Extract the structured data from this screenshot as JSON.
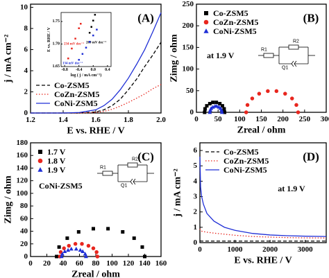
{
  "chart_data": [
    {
      "type": "line",
      "panel_label": "(A)",
      "x_label": "E vs. RHE / V",
      "y_label": "j / mA cm⁻²",
      "xlim": [
        1.2,
        2.0
      ],
      "ylim": [
        0,
        10.3
      ],
      "xticks": [
        1.2,
        1.4,
        1.6,
        1.8,
        {
          "value": 2,
          "label": "2.0"
        }
      ],
      "yticks": [
        0,
        2,
        4,
        6,
        8,
        10
      ],
      "legend": "lower left",
      "series": [
        {
          "name": "Co-ZSM5",
          "color": "#000000",
          "dash": "dashed",
          "x": [
            1.2,
            1.3,
            1.4,
            1.5,
            1.6,
            1.65,
            1.7,
            1.75,
            1.8,
            1.85,
            1.9,
            1.95,
            2.0
          ],
          "values": [
            0,
            0,
            0,
            0,
            0.1,
            0.3,
            0.7,
            1.3,
            2.2,
            3.2,
            4.4,
            5.5,
            6.7
          ]
        },
        {
          "name": "CoZn-ZSM5",
          "color": "#e8261e",
          "dash": "dotted",
          "x": [
            1.2,
            1.3,
            1.4,
            1.5,
            1.6,
            1.65,
            1.7,
            1.75,
            1.8,
            1.85,
            1.9,
            1.95,
            2.0
          ],
          "values": [
            0,
            0,
            0,
            0,
            0.05,
            0.15,
            0.35,
            0.65,
            1.0,
            1.4,
            1.8,
            2.3,
            2.7
          ]
        },
        {
          "name": "CoNi-ZSM5",
          "color": "#1f2fd6",
          "dash": "solid",
          "x": [
            1.2,
            1.3,
            1.4,
            1.5,
            1.6,
            1.65,
            1.7,
            1.75,
            1.8,
            1.85,
            1.9,
            1.95,
            2.0
          ],
          "values": [
            0,
            0,
            0,
            0.05,
            0.3,
            0.7,
            1.3,
            2.2,
            3.3,
            4.6,
            6.0,
            7.7,
            9.5
          ]
        }
      ]
    },
    {
      "type": "scatter",
      "x_label": "log ( j / mA cm⁻¹)",
      "y_label": "E vs. RHE / V",
      "xlim": [
        -0.9,
        0.5
      ],
      "ylim": [
        1.65,
        1.77
      ],
      "xticks": [
        -0.8,
        -0.4,
        {
          "value": 0,
          "label": "0.0"
        },
        0.4
      ],
      "yticks": [
        1.65,
        {
          "value": 1.7,
          "label": "1.70"
        },
        1.75
      ],
      "series": [
        {
          "color": "#e8261e",
          "marker": "square",
          "slope_label": "234 mV dec⁻¹",
          "x": [
            -0.7,
            -0.6,
            -0.5,
            -0.4,
            -0.35
          ],
          "values": [
            1.668,
            1.69,
            1.712,
            1.735,
            1.745
          ]
        },
        {
          "color": "#000000",
          "marker": "square",
          "slope_label": "269 mV dec⁻¹",
          "x": [
            -0.1,
            -0.05,
            0,
            0.05
          ],
          "values": [
            1.725,
            1.738,
            1.752,
            1.765
          ]
        },
        {
          "color": "#1f2fd6",
          "marker": "square",
          "slope_label": "134 mV dec⁻¹",
          "x": [
            -0.4,
            -0.3,
            -0.2,
            -0.1,
            0,
            0.1
          ],
          "values": [
            1.665,
            1.678,
            1.692,
            1.705,
            1.719,
            1.732
          ]
        }
      ]
    },
    {
      "type": "scatter",
      "panel_label": "(B)",
      "x_label": "Zreal / ohm",
      "y_label": "Zimg / ohm",
      "xlim": [
        0,
        300
      ],
      "ylim": [
        0,
        250
      ],
      "xticks": [
        0,
        50,
        100,
        150,
        200,
        250,
        300
      ],
      "yticks": [
        0,
        50,
        100,
        150,
        200,
        250
      ],
      "legend": "upper left",
      "annotations": [
        "at 1.9 V"
      ],
      "circuit_labels": [
        "R1",
        "R2",
        "Q1"
      ],
      "series": [
        {
          "name": "Co-ZSM5",
          "color": "#000000",
          "marker": "square",
          "x": [
            19,
            20,
            24,
            31,
            38,
            46,
            54,
            60,
            64,
            65
          ],
          "values": [
            0,
            8,
            15,
            20,
            23,
            23,
            20,
            15,
            8,
            0
          ]
        },
        {
          "name": "CoZn-ZSM5",
          "color": "#e8261e",
          "marker": "circle",
          "x": [
            115,
            118,
            129,
            145,
            165,
            185,
            205,
            221,
            231,
            235
          ],
          "values": [
            0,
            17,
            32,
            43,
            49,
            49,
            43,
            32,
            17,
            0
          ]
        },
        {
          "name": "CoNi-ZSM5",
          "color": "#1f2fd6",
          "marker": "triangle",
          "x": [
            31,
            32,
            34,
            38,
            43,
            47,
            52,
            56,
            58,
            59
          ],
          "values": [
            0,
            5,
            9,
            12,
            14,
            14,
            12,
            9,
            5,
            0
          ]
        }
      ]
    },
    {
      "type": "scatter",
      "panel_label": "(C)",
      "x_label": "Zreal / ohm",
      "y_label": "Zimg / ohm",
      "xlim": [
        0,
        160
      ],
      "ylim": [
        0,
        180
      ],
      "xticks": [
        0,
        20,
        40,
        60,
        80,
        100,
        120,
        140,
        160
      ],
      "yticks": [
        0,
        20,
        40,
        60,
        80,
        100,
        120,
        140,
        160,
        180
      ],
      "legend": "upper left",
      "annotations": [
        "CoNi-ZSM5"
      ],
      "circuit_labels": [
        "R1",
        "R2",
        "Q1"
      ],
      "series": [
        {
          "name": "1.7 V",
          "color": "#000000",
          "marker": "square",
          "x": [
            32,
            35,
            45,
            59,
            77,
            95,
            113,
            127,
            137,
            140
          ],
          "values": [
            0,
            15,
            29,
            39,
            44,
            44,
            39,
            29,
            15,
            0
          ]
        },
        {
          "name": "1.8 V",
          "color": "#e8261e",
          "marker": "circle",
          "x": [
            36,
            37,
            41,
            47,
            55,
            63,
            71,
            77,
            81,
            82
          ],
          "values": [
            0,
            7,
            13,
            17,
            20,
            20,
            17,
            13,
            7,
            0
          ]
        },
        {
          "name": "1.9 V",
          "color": "#1f2fd6",
          "marker": "triangle",
          "x": [
            38,
            39,
            42,
            46,
            50,
            56,
            61,
            64,
            67,
            68
          ],
          "values": [
            0,
            4,
            8,
            10,
            12,
            12,
            10,
            8,
            4,
            0
          ]
        }
      ]
    },
    {
      "type": "line",
      "panel_label": "(D)",
      "x_label": "E vs. RHE / V",
      "y_label": "j / mA cm⁻²",
      "xlim": [
        0,
        3600
      ],
      "ylim": [
        0,
        6.5
      ],
      "xticks": [
        0,
        1000,
        2000,
        3000
      ],
      "yticks": [
        0,
        1,
        2,
        3,
        4,
        5,
        6
      ],
      "legend": "upper left",
      "annotations": [
        "at 1.9 V"
      ],
      "series": [
        {
          "name": "Co-ZSM5",
          "color": "#000000",
          "dash": "dashed",
          "x": [
            0,
            20,
            50,
            100,
            200,
            400,
            700,
            1000,
            1500,
            2000,
            2500,
            3000,
            3600
          ],
          "values": [
            0.12,
            0.11,
            0.1,
            0.1,
            0.1,
            0.1,
            0.1,
            0.1,
            0.1,
            0.1,
            0.1,
            0.1,
            0.1
          ]
        },
        {
          "name": "CoZn-ZSM5",
          "color": "#e8261e",
          "dash": "dotted",
          "x": [
            0,
            20,
            50,
            100,
            200,
            400,
            700,
            1000,
            1500,
            2000,
            2500,
            3000,
            3600
          ],
          "values": [
            0.9,
            0.8,
            0.75,
            0.72,
            0.68,
            0.62,
            0.55,
            0.48,
            0.4,
            0.36,
            0.33,
            0.31,
            0.3
          ]
        },
        {
          "name": "CoNi-ZSM5",
          "color": "#1f2fd6",
          "dash": "solid",
          "x": [
            0,
            20,
            50,
            100,
            200,
            400,
            700,
            1000,
            1500,
            2000,
            2500,
            3000,
            3600
          ],
          "values": [
            5.6,
            3.6,
            3.0,
            2.5,
            1.9,
            1.4,
            1.0,
            0.8,
            0.6,
            0.5,
            0.45,
            0.42,
            0.4
          ]
        }
      ]
    }
  ]
}
